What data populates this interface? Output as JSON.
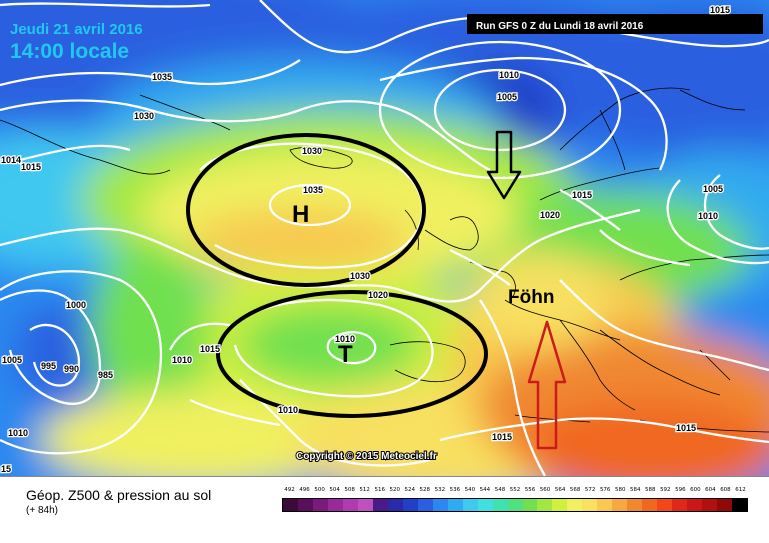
{
  "header": {
    "date": "Jeudi 21 avril 2016",
    "time": "14:00 locale",
    "run": "Run GFS 0 Z du Lundi 18 avril 2016",
    "copyright": "Copyright © 2015 Meteociel.fr"
  },
  "annotations": {
    "high": "H",
    "low": "T",
    "foehn": "Föhn"
  },
  "isobars": {
    "p1015_tr": "1015",
    "p1035_nw": "1035",
    "p1030_nw": "1030",
    "p1010_n": "1010",
    "p1005_n": "1005",
    "p1030_ic": "1030",
    "p1035_h": "1035",
    "p1015_w1": "1014",
    "p1015_w2": "1015",
    "p1015_no": "1015",
    "p1020_c": "1020",
    "p1005_e": "1005",
    "p1010_e": "1010",
    "p1030_a": "1030",
    "p1020_b": "1020",
    "p1000_w": "1000",
    "p1005_w": "1005",
    "p995": "995",
    "p990": "990",
    "p985": "985",
    "p1010_w": "1010",
    "p1015_m": "1015",
    "p1010_t": "1010",
    "p1010_sw": "1010",
    "p1010_sw2": "1010",
    "p1015_s": "1015",
    "p1015_se": "1015",
    "p15_bl": "15"
  },
  "legend": {
    "title": "Géop. Z500 & pression au sol",
    "subtitle": "(+ 84h)",
    "scale": [
      "492",
      "496",
      "500",
      "504",
      "508",
      "512",
      "516",
      "520",
      "524",
      "528",
      "532",
      "536",
      "540",
      "544",
      "548",
      "552",
      "556",
      "560",
      "564",
      "568",
      "572",
      "576",
      "580",
      "584",
      "588",
      "592",
      "596",
      "600",
      "604",
      "608",
      "612"
    ],
    "colors": [
      "#3a0a3a",
      "#5a0f5a",
      "#7a1a7a",
      "#9a2a9a",
      "#b03ab0",
      "#c050c0",
      "#4a1a8a",
      "#2a2aa8",
      "#2040c8",
      "#2a60e0",
      "#2a88f0",
      "#30aaf0",
      "#40c8f0",
      "#40e0e0",
      "#40e0b0",
      "#50e080",
      "#70e050",
      "#a0e840",
      "#d0f040",
      "#f0f060",
      "#f8e060",
      "#f8c850",
      "#f8a840",
      "#f08830",
      "#f06820",
      "#f04818",
      "#e02818",
      "#c81818",
      "#b01010",
      "#900808",
      "#000000"
    ]
  }
}
